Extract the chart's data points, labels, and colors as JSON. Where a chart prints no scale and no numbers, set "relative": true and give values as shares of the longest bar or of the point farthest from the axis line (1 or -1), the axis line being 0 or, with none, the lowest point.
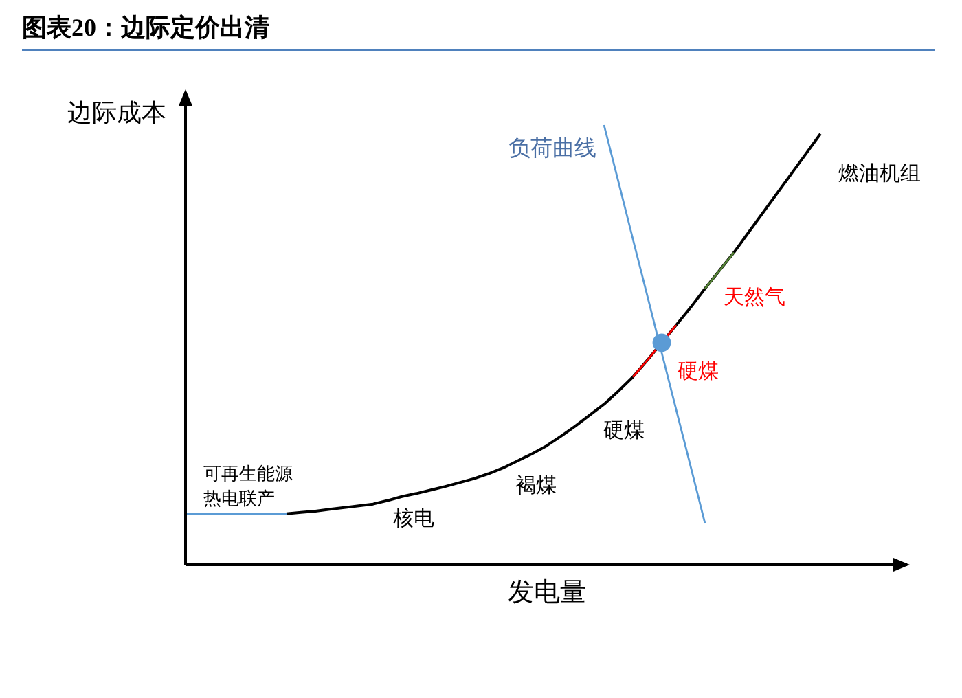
{
  "chart_data": {
    "type": "line",
    "title": "图表20：边际定价出清",
    "xlabel": "发电量",
    "ylabel": "边际成本",
    "relative": true,
    "marker": "none",
    "categories": [
      null,
      null,
      null,
      null,
      null,
      null,
      null,
      null,
      null,
      null,
      null,
      null,
      null,
      null,
      null,
      null,
      null,
      null,
      null,
      null,
      null,
      null,
      null,
      null,
      null,
      null,
      null,
      null,
      null,
      null,
      null,
      null,
      null,
      null,
      null,
      null,
      null,
      null,
      null,
      null,
      null,
      null,
      null,
      null,
      null,
      null,
      null,
      null,
      null,
      null,
      null
    ],
    "series": [
      {
        "color": "#000000",
        "values": [
          null,
          null,
          null,
          null,
          null,
          null,
          null,
          0.116,
          0.119,
          0.122,
          0.126,
          0.13,
          0.134,
          0.138,
          0.146,
          0.155,
          0.162,
          0.17,
          0.178,
          0.187,
          0.196,
          0.207,
          0.22,
          0.236,
          0.252,
          0.27,
          0.292,
          0.315,
          0.34,
          0.365,
          0.395,
          0.427,
          0.465,
          0.505,
          0.545,
          0.585,
          0.628,
          0.669,
          0.71,
          0.755,
          0.8,
          0.845,
          0.89,
          0.935,
          0.98,
          null,
          null,
          null,
          null,
          null,
          null
        ]
      },
      {
        "color": "#5b9bd5",
        "values": [
          0.116,
          0.116,
          0.116,
          0.116,
          0.116,
          0.116,
          0.116,
          0.116,
          null,
          null,
          null,
          null,
          null,
          null,
          null,
          null,
          null,
          null,
          null,
          null,
          null,
          null,
          null,
          null,
          null,
          null,
          null,
          null,
          null,
          null,
          null,
          null,
          null,
          null,
          null,
          null,
          null,
          null,
          null,
          null,
          null,
          null,
          null,
          null,
          null,
          null,
          null,
          null,
          null,
          null,
          null
        ]
      },
      {
        "color": "#5b9bd5",
        "values": [
          null,
          null,
          null,
          null,
          null,
          null,
          null,
          null,
          null,
          null,
          null,
          null,
          null,
          null,
          null,
          null,
          null,
          null,
          null,
          null,
          null,
          null,
          null,
          null,
          null,
          null,
          null,
          null,
          null,
          1,
          0.871,
          0.741,
          0.612,
          0.482,
          0.353,
          0.224,
          0.094,
          null,
          null,
          null,
          null,
          null,
          null,
          null,
          null,
          null,
          null,
          null,
          null,
          null,
          null
        ]
      },
      {
        "color": "#ff0000",
        "values": [
          null,
          null,
          null,
          null,
          null,
          null,
          null,
          null,
          null,
          null,
          null,
          null,
          null,
          null,
          null,
          null,
          null,
          null,
          null,
          null,
          null,
          null,
          null,
          null,
          null,
          null,
          null,
          null,
          null,
          null,
          null,
          0.427,
          0.465,
          0.505,
          0.545,
          null,
          null,
          null,
          null,
          null,
          null,
          null,
          null,
          null,
          null,
          null,
          null,
          null,
          null,
          null,
          null
        ]
      },
      {
        "color": "#548235",
        "values": [
          null,
          null,
          null,
          null,
          null,
          null,
          null,
          null,
          null,
          null,
          null,
          null,
          null,
          null,
          null,
          null,
          null,
          null,
          null,
          null,
          null,
          null,
          null,
          null,
          null,
          null,
          null,
          null,
          null,
          null,
          null,
          null,
          null,
          null,
          null,
          null,
          0.628,
          0.669,
          0.71,
          null,
          null,
          null,
          null,
          null,
          null,
          null,
          null,
          null,
          null,
          null,
          null
        ]
      },
      {
        "color": "#5b9bd5",
        "marker": "circle",
        "values": [
          null,
          null,
          null,
          null,
          null,
          null,
          null,
          null,
          null,
          null,
          null,
          null,
          null,
          null,
          null,
          null,
          null,
          null,
          null,
          null,
          null,
          null,
          null,
          null,
          null,
          null,
          null,
          null,
          null,
          null,
          null,
          null,
          null,
          0.505,
          null,
          null,
          null,
          null,
          null,
          null,
          null,
          null,
          null,
          null,
          null,
          null,
          null,
          null,
          null,
          null,
          null
        ]
      }
    ],
    "annotations": [
      "可再生能源",
      "热电联产",
      "核电",
      "褐煤",
      "硬煤",
      "硬煤",
      "天然气",
      "燃油机组",
      "负荷曲线"
    ]
  }
}
